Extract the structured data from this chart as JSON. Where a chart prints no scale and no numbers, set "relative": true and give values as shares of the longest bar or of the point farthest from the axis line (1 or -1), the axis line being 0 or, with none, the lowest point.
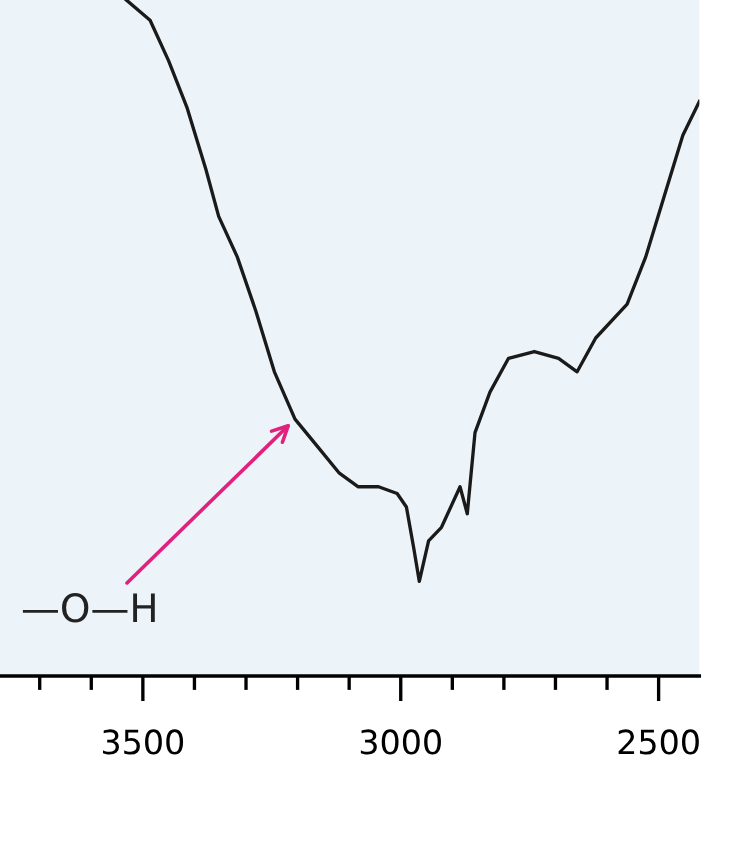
{
  "chart_data": {
    "type": "line",
    "relative": true,
    "color": "#1a1a1a",
    "x": [
      3532,
      3486,
      3450,
      3414,
      3378,
      3353,
      3317,
      3281,
      3245,
      3205,
      3162,
      3119,
      3083,
      3043,
      3007,
      2989,
      2975,
      2964,
      2946,
      2921,
      2885,
      2871,
      2856,
      2827,
      2791,
      2741,
      2694,
      2658,
      2622,
      2561,
      2525,
      2489,
      2453,
      2421
    ],
    "values": [
      1.0,
      0.97,
      0.91,
      0.84,
      0.75,
      0.68,
      0.62,
      0.54,
      0.45,
      0.38,
      0.34,
      0.3,
      0.28,
      0.28,
      0.27,
      0.25,
      0.19,
      0.14,
      0.2,
      0.22,
      0.28,
      0.24,
      0.36,
      0.42,
      0.47,
      0.48,
      0.47,
      0.45,
      0.5,
      0.55,
      0.62,
      0.71,
      0.8,
      0.85
    ],
    "xlim": [
      3777,
      2421
    ],
    "xticks": [
      {
        "value": 3700,
        "label": null
      },
      {
        "value": 3600,
        "label": null
      },
      3500,
      {
        "value": 3400,
        "label": null
      },
      {
        "value": 3300,
        "label": null
      },
      {
        "value": 3200,
        "label": null
      },
      {
        "value": 3100,
        "label": null
      },
      3000,
      {
        "value": 2900,
        "label": null
      },
      {
        "value": 2800,
        "label": null
      },
      {
        "value": 2700,
        "label": null
      },
      {
        "value": 2600,
        "label": null
      },
      2500
    ],
    "annotations": [
      {
        "text": "—O—H",
        "x": 3205,
        "y": 0.38
      }
    ],
    "grid": false,
    "legend": false,
    "marker": "none",
    "line_style": "solid"
  }
}
